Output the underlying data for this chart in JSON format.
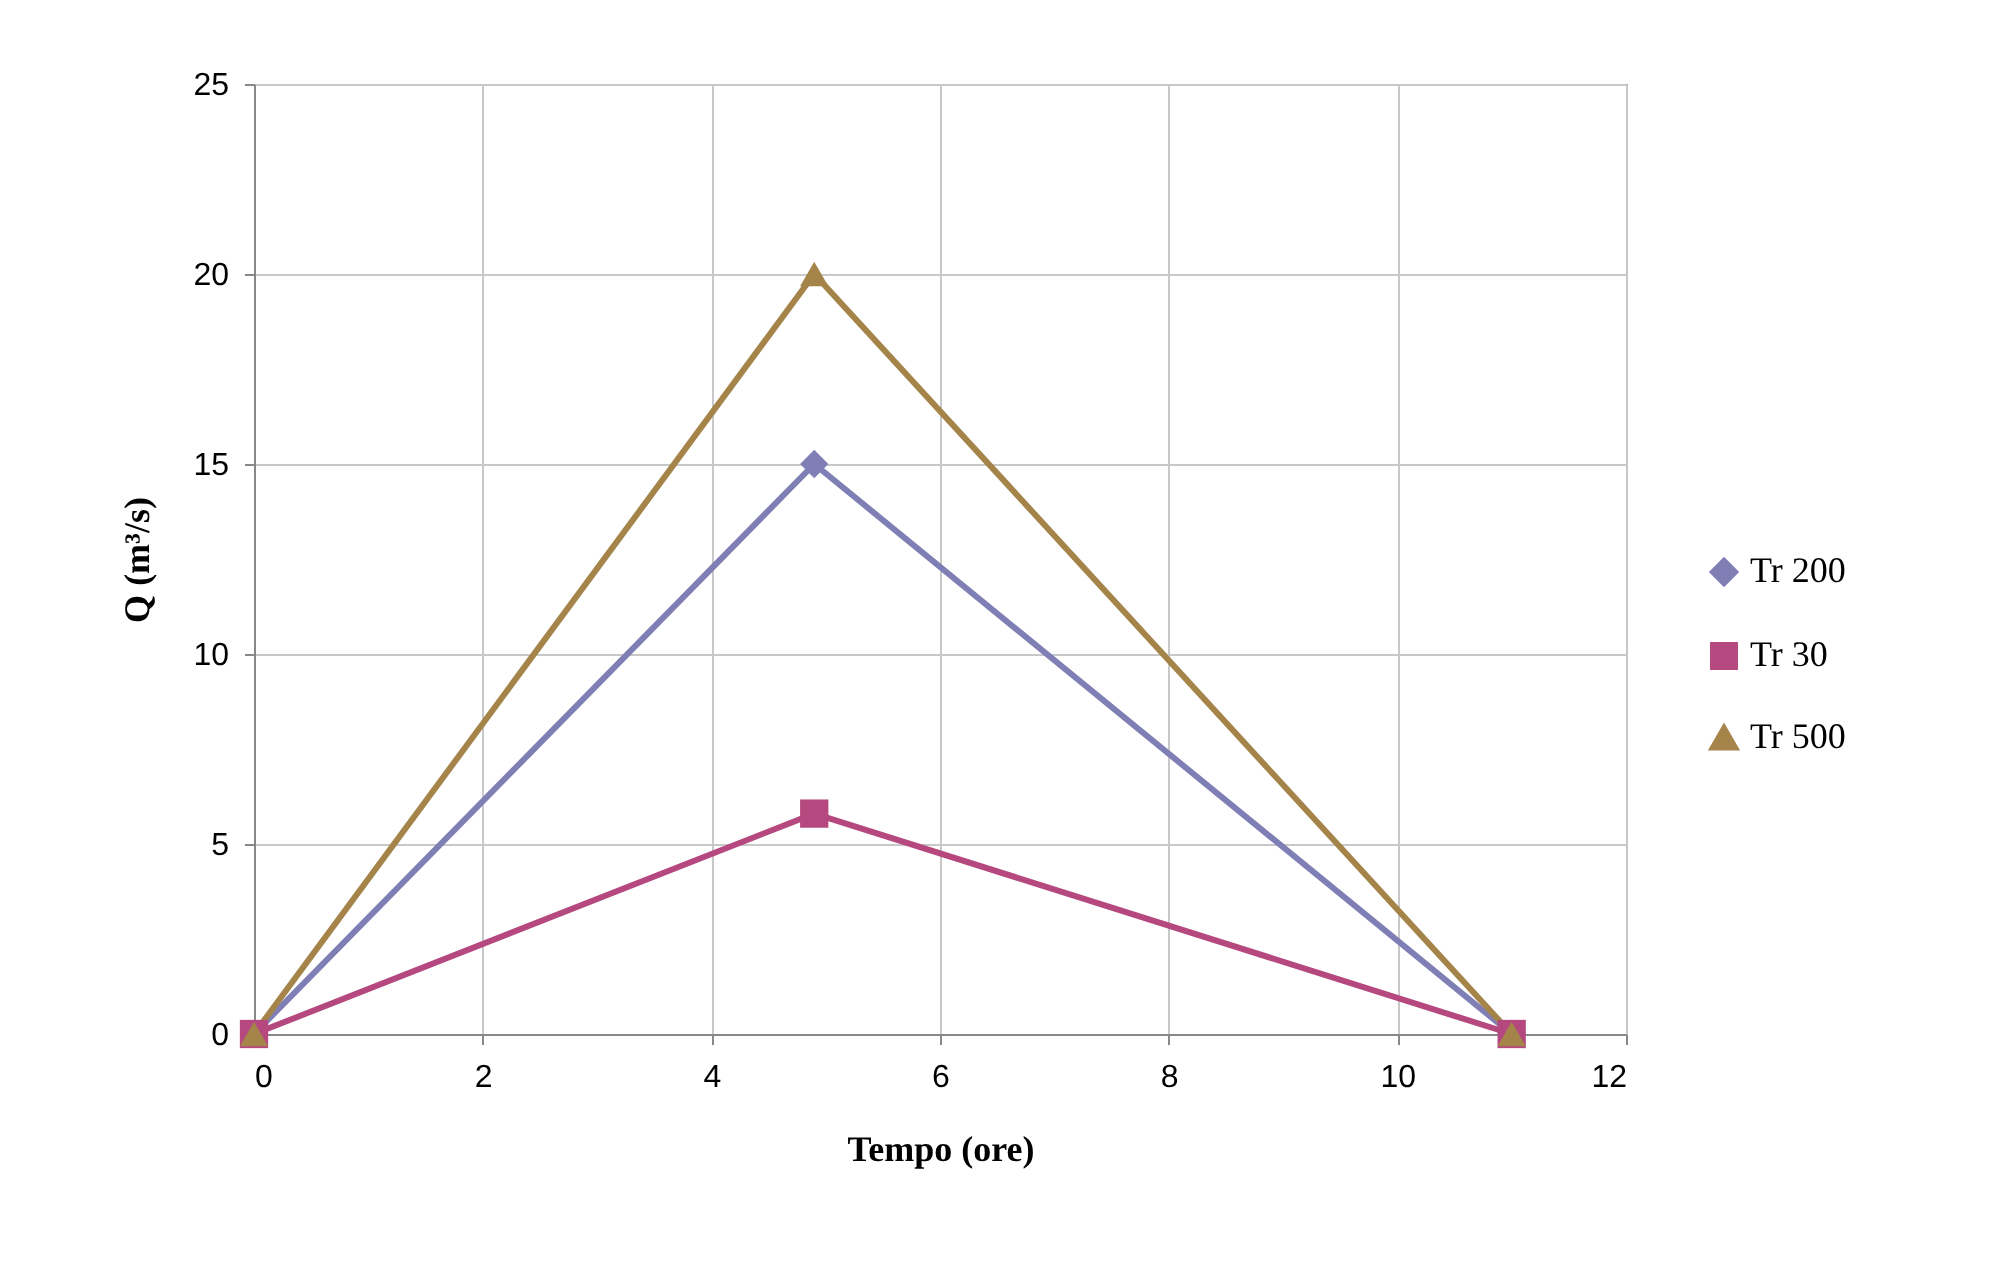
{
  "chart_data": {
    "type": "line",
    "xlabel": "Tempo (ore)",
    "ylabel": "Q (m³/s)",
    "xlim": [
      0,
      12
    ],
    "xticks": [
      0,
      2,
      4,
      6,
      8,
      10,
      12
    ],
    "ylim": [
      0,
      25
    ],
    "yticks": [
      0,
      5,
      10,
      15,
      20,
      25
    ],
    "grid": true,
    "legend": "right",
    "series": [
      {
        "name": "Tr 200",
        "color": "#7f7fb5",
        "marker": "diamond",
        "x": [
          0,
          4.9,
          11
        ],
        "values": [
          0,
          15,
          0
        ]
      },
      {
        "name": "Tr 30",
        "color": "#b5487f",
        "marker": "square",
        "x": [
          0,
          4.9,
          11
        ],
        "values": [
          0,
          5.8,
          0
        ]
      },
      {
        "name": "Tr 500",
        "color": "#a5844a",
        "marker": "triangle",
        "x": [
          0,
          4.9,
          11
        ],
        "values": [
          0,
          20,
          0
        ]
      }
    ]
  }
}
